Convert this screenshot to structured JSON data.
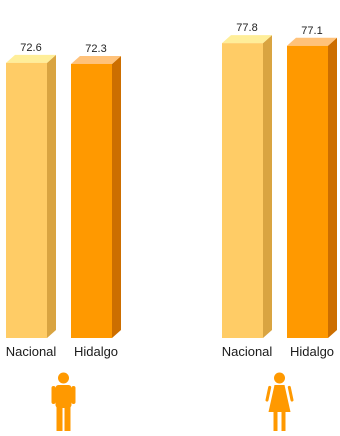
{
  "chart_data": {
    "type": "bar",
    "categories": [
      "Nacional",
      "Hidalgo"
    ],
    "groups": [
      {
        "icon": "male-person-icon",
        "series": [
          {
            "category": "Nacional",
            "value": 72.6
          },
          {
            "category": "Hidalgo",
            "value": 72.3
          }
        ]
      },
      {
        "icon": "female-person-icon",
        "series": [
          {
            "category": "Nacional",
            "value": 77.8
          },
          {
            "category": "Hidalgo",
            "value": 77.1
          }
        ]
      }
    ],
    "colors": {
      "Nacional": {
        "front": "#FFCC66",
        "side": "#D9A441",
        "top": "#FFEE99"
      },
      "Hidalgo": {
        "front": "#FF9900",
        "side": "#CC6E00",
        "top": "#FFC27A"
      },
      "icon": "#FF9900"
    }
  }
}
